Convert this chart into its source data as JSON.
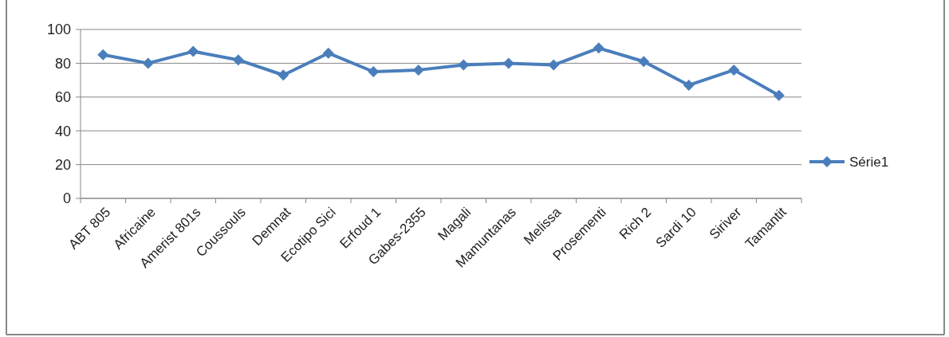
{
  "chart_data": {
    "type": "line",
    "categories": [
      "ABT 805",
      "Africaine",
      "Amerist 801s",
      "Coussouls",
      "Demnat",
      "Ecotipo Sici",
      "Erfoud 1",
      "Gabes-2355",
      "Magali",
      "Mamuntanas",
      "Melissa",
      "Prosementi",
      "Rich 2",
      "Sardi 10",
      "Siriver",
      "Tamantit"
    ],
    "series": [
      {
        "name": "Série1",
        "color": "#4a7ebb",
        "values": [
          85,
          80,
          87,
          82,
          73,
          86,
          75,
          76,
          79,
          80,
          79,
          89,
          81,
          67,
          76,
          61
        ]
      }
    ],
    "ylim": [
      0,
      100
    ],
    "yticks": [
      0,
      20,
      40,
      60,
      80,
      100
    ],
    "grid": "y",
    "legend": "right",
    "marker": "diamond",
    "line_style": "solid"
  }
}
